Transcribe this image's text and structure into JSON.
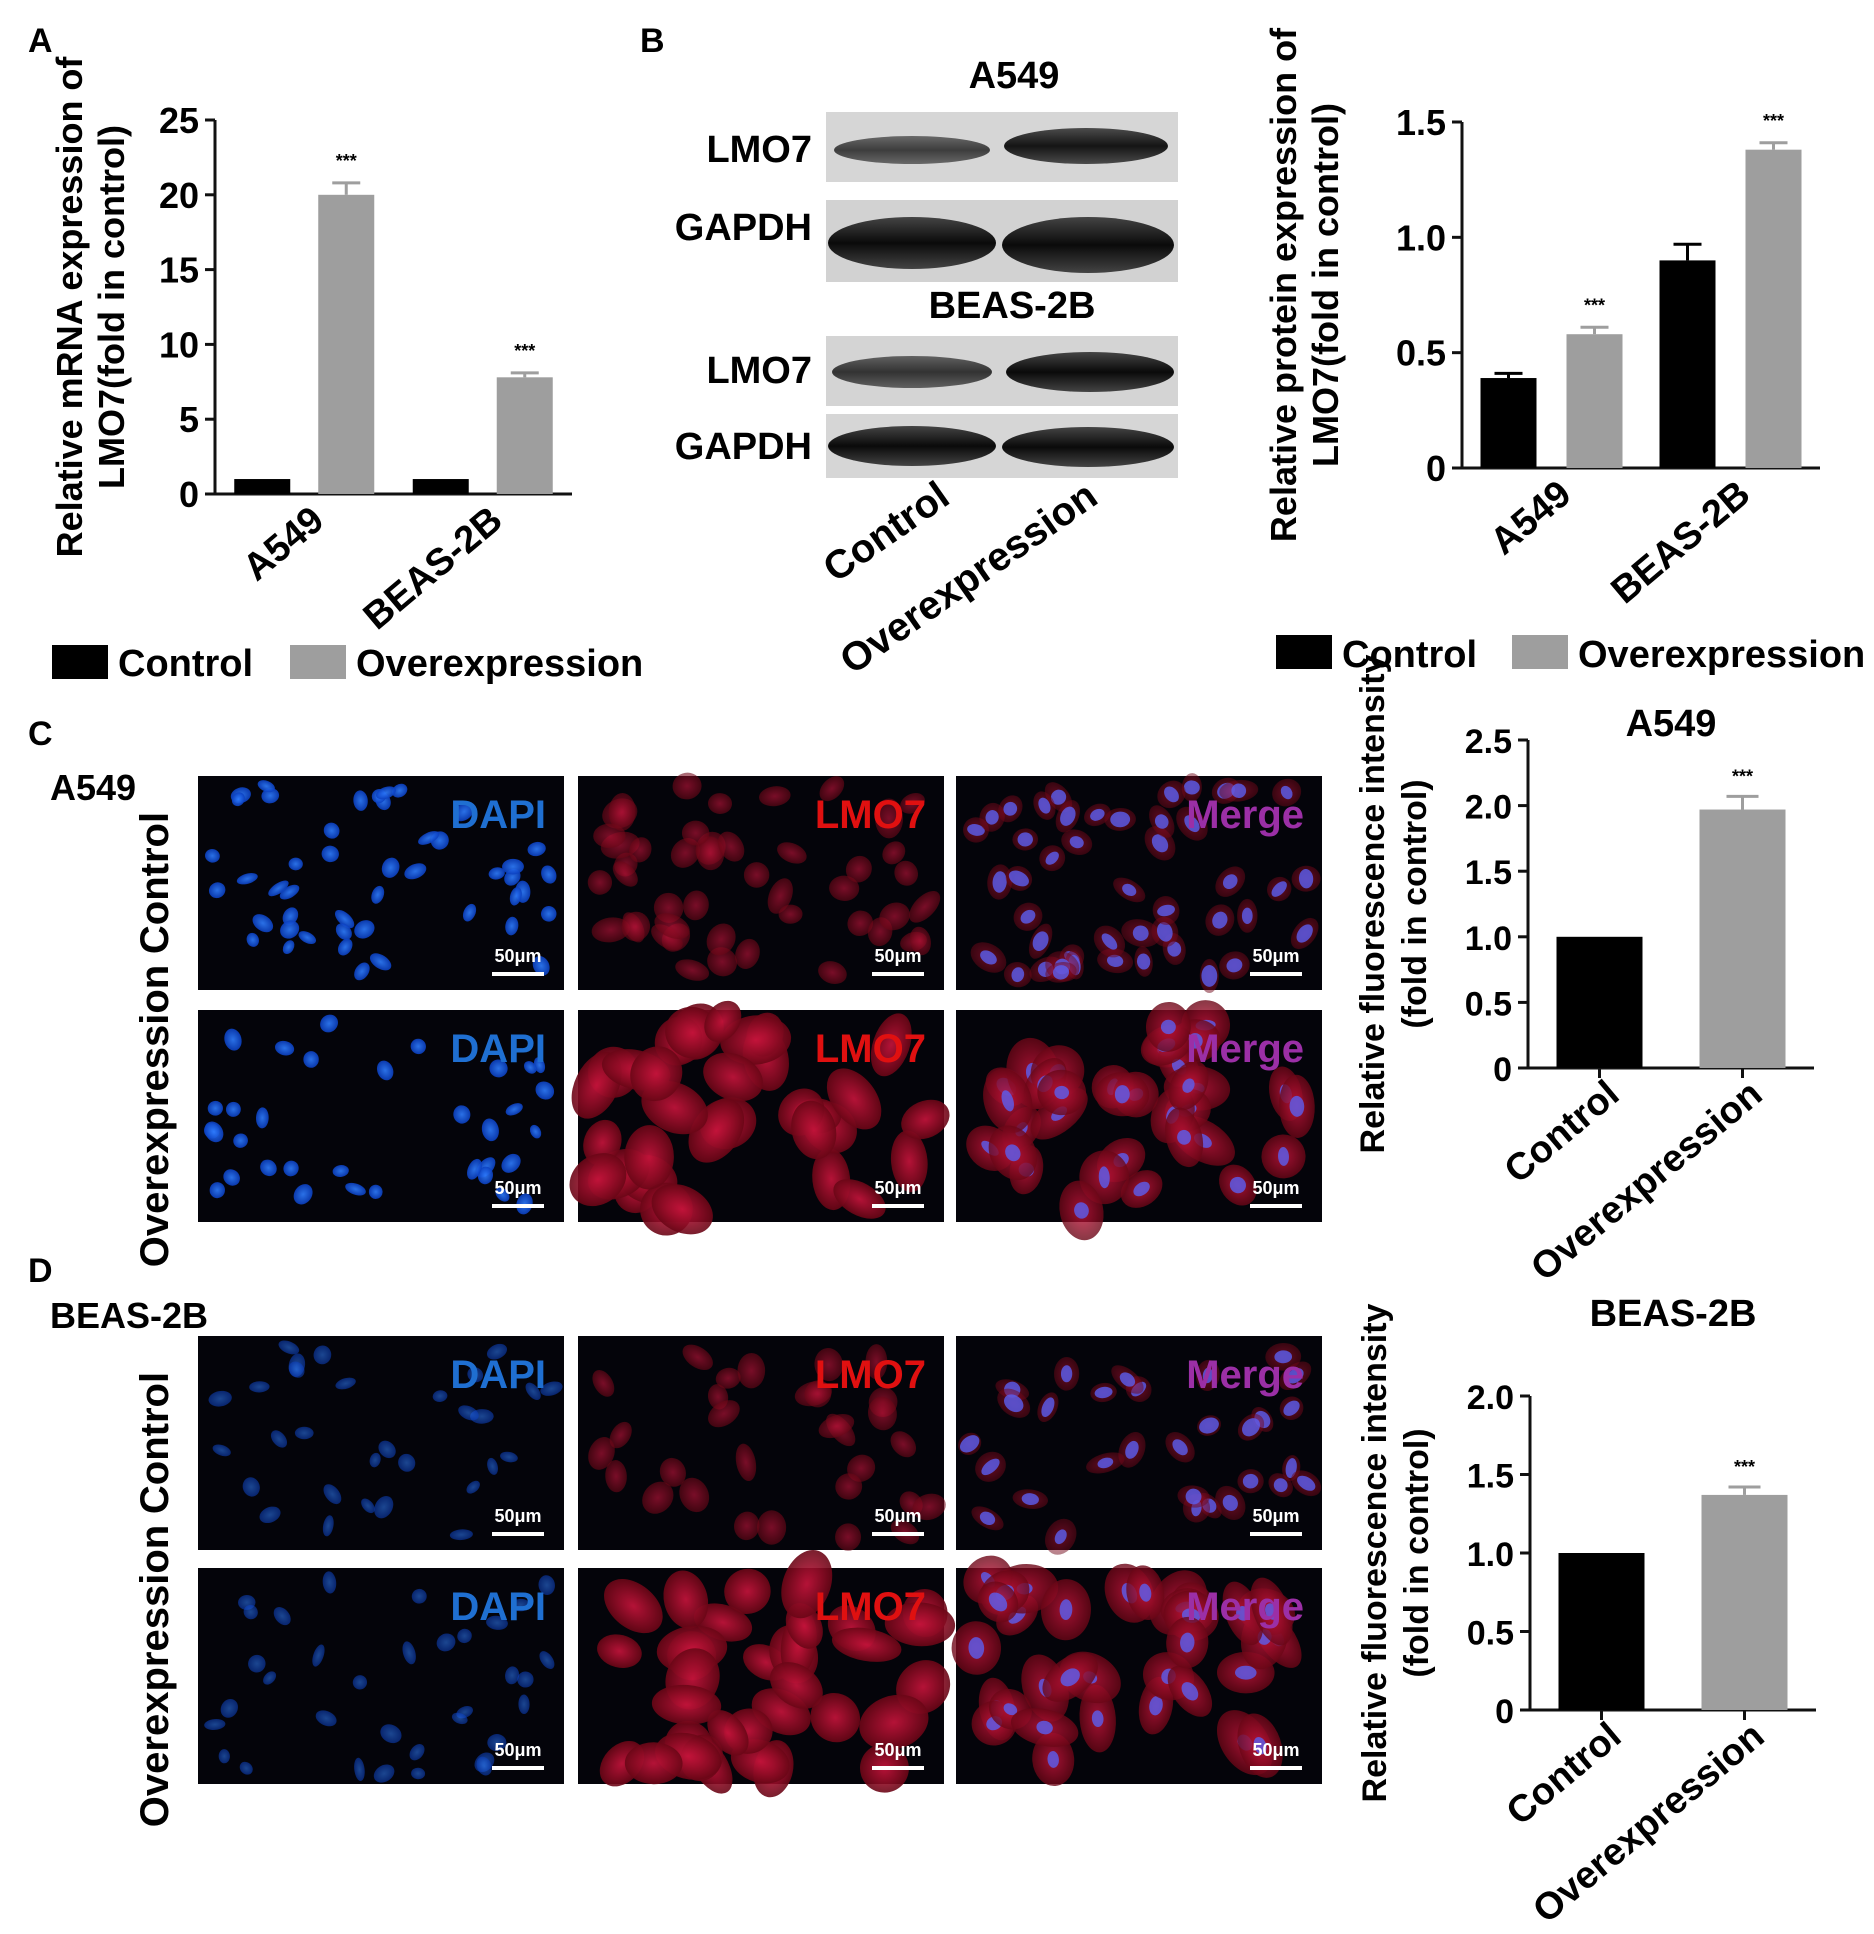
{
  "panels": {
    "A": "A",
    "B": "B",
    "C": "C",
    "D": "D"
  },
  "legend": {
    "control": "Control",
    "overexpression": "Overexpression"
  },
  "colors": {
    "control": "#000000",
    "overexpression": "#9e9e9e",
    "dapi": "#1f6fd1",
    "lmo7": "#e01010",
    "merge": "#9b2fa6"
  },
  "blot": {
    "a549_title": "A549",
    "beas_title": "BEAS-2B",
    "rows": [
      "LMO7",
      "GAPDH",
      "LMO7",
      "GAPDH"
    ],
    "lanes": [
      "Control",
      "Overexpression"
    ]
  },
  "micrographs": {
    "C": {
      "cell_line": "A549",
      "row_labels": [
        "Control",
        "Overexpression"
      ],
      "channels": [
        "DAPI",
        "LMO7",
        "Merge"
      ],
      "scale_bar": "50μm"
    },
    "D": {
      "cell_line": "BEAS-2B",
      "row_labels": [
        "Control",
        "Overexpression"
      ],
      "channels": [
        "DAPI",
        "LMO7",
        "Merge"
      ],
      "scale_bar": "50μm"
    }
  },
  "chart_data": [
    {
      "id": "A",
      "type": "bar",
      "ylabel_lines": [
        "Relative mRNA expression of",
        "LMO7(fold in control)"
      ],
      "categories": [
        "A549",
        "BEAS-2B"
      ],
      "series": [
        {
          "name": "Control",
          "values": [
            1,
            1
          ],
          "errors": [
            0,
            0
          ]
        },
        {
          "name": "Overexpression",
          "values": [
            20,
            7.8
          ],
          "errors": [
            0.8,
            0.3
          ]
        }
      ],
      "ylim": [
        0,
        25
      ],
      "yticks": [
        "0",
        "5",
        "10",
        "15",
        "20",
        "25"
      ],
      "significance": [
        "***",
        "***"
      ]
    },
    {
      "id": "B",
      "type": "bar",
      "ylabel_lines": [
        "Relative protein expression of",
        "LMO7(fold in control)"
      ],
      "categories": [
        "A549",
        "BEAS-2B"
      ],
      "series": [
        {
          "name": "Control",
          "values": [
            0.39,
            0.9
          ],
          "errors": [
            0.02,
            0.07
          ]
        },
        {
          "name": "Overexpression",
          "values": [
            0.58,
            1.38
          ],
          "errors": [
            0.03,
            0.03
          ]
        }
      ],
      "ylim": [
        0,
        1.5
      ],
      "yticks": [
        "0",
        "0.5",
        "1.0",
        "1.5"
      ],
      "significance": [
        "***",
        "***"
      ]
    },
    {
      "id": "C",
      "type": "bar",
      "title": "A549",
      "ylabel_lines": [
        "Relative fluorescence intensity",
        "(fold in control)"
      ],
      "categories": [
        "Control",
        "Overexpression"
      ],
      "values": [
        1.0,
        1.97
      ],
      "errors": [
        0,
        0.1
      ],
      "ylim": [
        0,
        2.5
      ],
      "yticks": [
        "0",
        "0.5",
        "1.0",
        "1.5",
        "2.0",
        "2.5"
      ],
      "significance": [
        "",
        "***"
      ]
    },
    {
      "id": "D",
      "type": "bar",
      "title": "BEAS-2B",
      "ylabel_lines": [
        "Relative fluorescence intensity",
        "(fold in control)"
      ],
      "categories": [
        "Control",
        "Overexpression"
      ],
      "values": [
        1.0,
        1.37
      ],
      "errors": [
        0,
        0.05
      ],
      "ylim": [
        0,
        2.0
      ],
      "yticks": [
        "0",
        "0.5",
        "1.0",
        "1.5",
        "2.0"
      ],
      "significance": [
        "",
        "***"
      ]
    }
  ]
}
